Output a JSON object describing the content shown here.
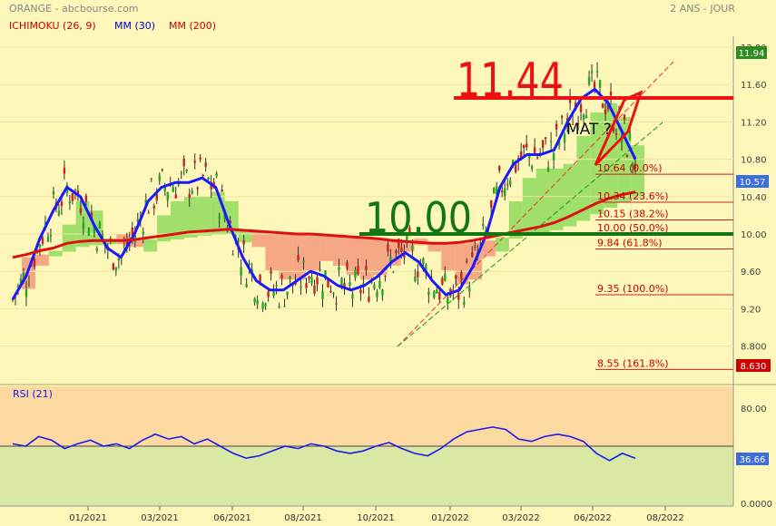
{
  "header": {
    "title": "ORANGE - abcbourse.com",
    "period": "2 ANS - JOUR"
  },
  "legend": [
    {
      "label": "ICHIMOKU (26, 9)",
      "color": "#cc0000"
    },
    {
      "label": "MM (30)",
      "color": "#0000cc"
    },
    {
      "label": "MM (200)",
      "color": "#cc0000"
    }
  ],
  "price_axis": {
    "ticks": [
      "12.00",
      "11.60",
      "11.20",
      "10.80",
      "10.40",
      "10.00",
      "9.60",
      "9.20",
      "8.800"
    ],
    "last_price": "10.57",
    "last_price_color": "#3d6ee0",
    "top_badge": "11.94",
    "top_badge_color": "#2e8b22",
    "bottom_badge": "8.630",
    "bottom_badge_color": "#cc0000"
  },
  "annotations": {
    "level_high": "11.44",
    "level_support": "10.00",
    "pattern_label": "MAT ?"
  },
  "fibonacci": [
    {
      "label": "10.64 (0.0%)",
      "value": 10.64
    },
    {
      "label": "10.34 (23.6%)",
      "value": 10.34
    },
    {
      "label": "10.15 (38.2%)",
      "value": 10.15
    },
    {
      "label": "10.00 (50.0%)",
      "value": 10.0
    },
    {
      "label": "9.84 (61.8%)",
      "value": 9.84
    },
    {
      "label": "9.35 (100.0%)",
      "value": 9.35
    },
    {
      "label": "8.55 (161.8%)",
      "value": 8.55
    }
  ],
  "rsi": {
    "label": "RSI (21)",
    "ticks": [
      "80.00",
      "0.0000"
    ],
    "last_value": "36.66",
    "last_value_color": "#3d6ee0"
  },
  "x_axis": {
    "ticks": [
      "01/2021",
      "03/2021",
      "06/2021",
      "08/2021",
      "10/2021",
      "01/2022",
      "03/2022",
      "06/2022",
      "08/2022"
    ]
  },
  "chart_data": {
    "type": "line",
    "x_ticks": [
      "01/2021",
      "03/2021",
      "06/2021",
      "08/2021",
      "10/2021",
      "01/2022",
      "03/2022",
      "06/2022",
      "08/2022"
    ],
    "ylim": [
      8.55,
      12.05
    ],
    "series": [
      {
        "name": "MM (30)",
        "color": "#1a1aff",
        "values": [
          9.3,
          9.55,
          9.95,
          10.25,
          10.5,
          10.4,
          10.1,
          9.85,
          9.75,
          10.0,
          10.35,
          10.5,
          10.55,
          10.55,
          10.6,
          10.5,
          10.1,
          9.75,
          9.5,
          9.4,
          9.4,
          9.5,
          9.6,
          9.55,
          9.45,
          9.4,
          9.45,
          9.55,
          9.7,
          9.8,
          9.7,
          9.5,
          9.35,
          9.4,
          9.65,
          10.0,
          10.5,
          10.75,
          10.85,
          10.85,
          10.9,
          11.2,
          11.45,
          11.55,
          11.4,
          11.1,
          10.8
        ]
      },
      {
        "name": "MM (200)",
        "color": "#dd1111",
        "values": [
          9.75,
          9.78,
          9.82,
          9.85,
          9.9,
          9.92,
          9.93,
          9.93,
          9.93,
          9.94,
          9.96,
          9.98,
          10.0,
          10.02,
          10.03,
          10.04,
          10.05,
          10.04,
          10.03,
          10.02,
          10.01,
          10.0,
          10.0,
          9.99,
          9.98,
          9.97,
          9.96,
          9.95,
          9.93,
          9.92,
          9.91,
          9.9,
          9.9,
          9.91,
          9.93,
          9.96,
          9.99,
          10.02,
          10.05,
          10.08,
          10.12,
          10.18,
          10.25,
          10.32,
          10.38,
          10.42,
          10.45
        ]
      }
    ],
    "rsi_series": {
      "name": "RSI (21)",
      "ylim": [
        0,
        100
      ],
      "reference": 50,
      "values": [
        52,
        50,
        58,
        55,
        48,
        52,
        55,
        50,
        52,
        48,
        55,
        60,
        56,
        58,
        52,
        56,
        50,
        44,
        40,
        42,
        46,
        50,
        48,
        52,
        50,
        46,
        44,
        46,
        50,
        53,
        48,
        44,
        42,
        48,
        56,
        62,
        64,
        66,
        64,
        56,
        54,
        58,
        60,
        58,
        54,
        44,
        38,
        44,
        40
      ]
    }
  }
}
